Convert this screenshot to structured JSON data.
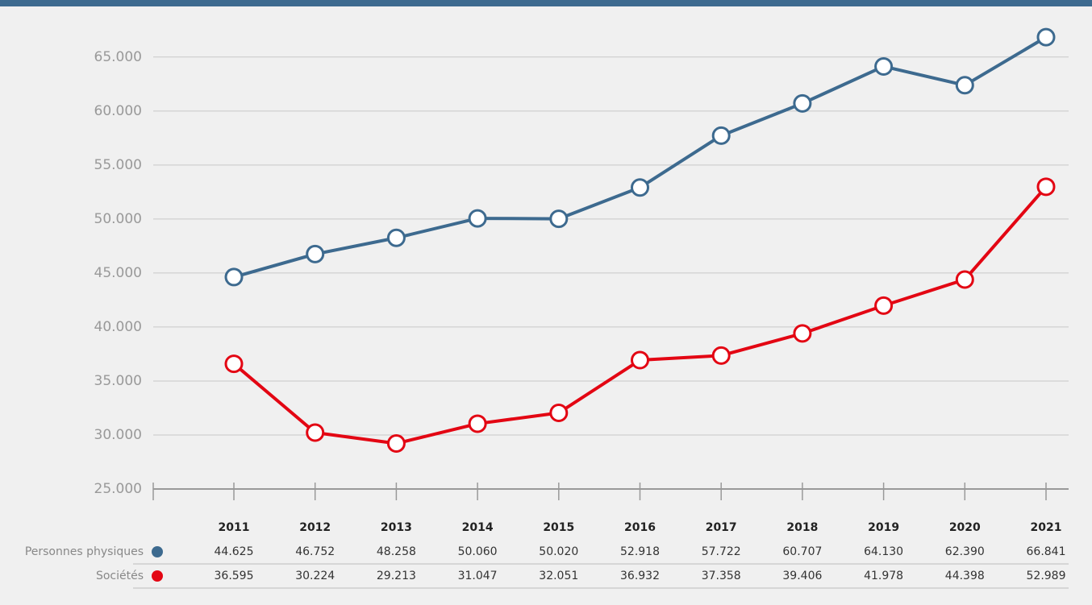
{
  "chart_data": {
    "type": "line",
    "categories": [
      "2011",
      "2012",
      "2013",
      "2014",
      "2015",
      "2016",
      "2017",
      "2018",
      "2019",
      "2020",
      "2021"
    ],
    "series": [
      {
        "name": "Personnes physiques",
        "color": "#3d6a8f",
        "values": [
          44625,
          46752,
          48258,
          50060,
          50020,
          52918,
          57722,
          60707,
          64130,
          62390,
          66841
        ],
        "value_labels": [
          "44.625",
          "46.752",
          "48.258",
          "50.060",
          "50.020",
          "52.918",
          "57.722",
          "60.707",
          "64.130",
          "62.390",
          "66.841"
        ]
      },
      {
        "name": "Sociétés",
        "color": "#e30613",
        "values": [
          36595,
          30224,
          29213,
          31047,
          32051,
          36932,
          37358,
          39406,
          41978,
          44398,
          52989
        ],
        "value_labels": [
          "36.595",
          "30.224",
          "29.213",
          "31.047",
          "32.051",
          "36.932",
          "37.358",
          "39.406",
          "41.978",
          "44.398",
          "52.989"
        ]
      }
    ],
    "ylim": [
      25000,
      67000
    ],
    "yticks": [
      {
        "value": 25000,
        "label": "25.000"
      },
      {
        "value": 30000,
        "label": "30.000"
      },
      {
        "value": 35000,
        "label": "35.000"
      },
      {
        "value": 40000,
        "label": "40.000"
      },
      {
        "value": 45000,
        "label": "45.000"
      },
      {
        "value": 50000,
        "label": "50.000"
      },
      {
        "value": 55000,
        "label": "55.000"
      },
      {
        "value": 60000,
        "label": "60.000"
      },
      {
        "value": 65000,
        "label": "65.000"
      }
    ],
    "grid": true
  }
}
